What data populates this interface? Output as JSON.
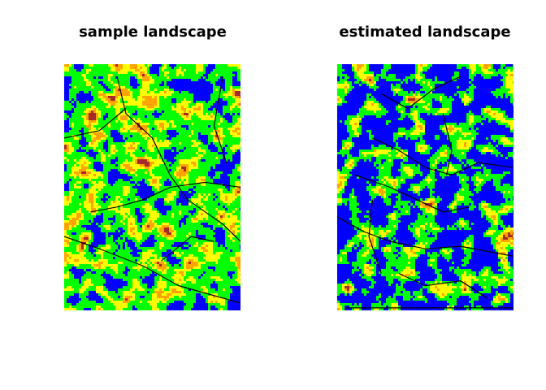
{
  "panels": [
    {
      "title": "sample landscape",
      "border_color": "#000000"
    },
    {
      "title": "estimated landscape",
      "border_color": "#000000"
    }
  ],
  "palette": {
    "class_1": "#0000ff",
    "class_2": "#00ff00",
    "class_3": "#ffff00",
    "class_4": "#ffa500",
    "class_5": "#a52a2a",
    "boundary": "#000000",
    "background": "#ffffff"
  }
}
